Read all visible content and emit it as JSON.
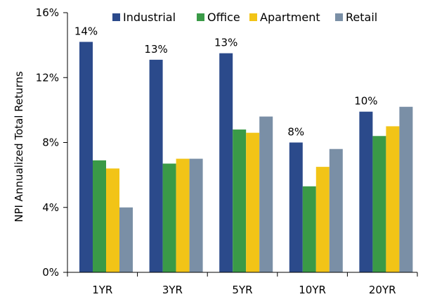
{
  "chart_data": {
    "type": "bar",
    "title": "",
    "xlabel": "",
    "ylabel": "NPI Annualized Total Returns",
    "ylim": [
      0,
      16
    ],
    "yticks": [
      "0%",
      "4%",
      "8%",
      "12%",
      "16%"
    ],
    "ytick_values": [
      0,
      4,
      8,
      12,
      16
    ],
    "grid": false,
    "legend_position": "top",
    "categories": [
      "1YR",
      "3YR",
      "5YR",
      "10YR",
      "20YR"
    ],
    "series": [
      {
        "name": "Industrial",
        "color": "#2B4A8B",
        "values": [
          14.2,
          13.1,
          13.5,
          8.0,
          9.9
        ]
      },
      {
        "name": "Office",
        "color": "#3A9A47",
        "values": [
          6.9,
          6.7,
          8.8,
          5.3,
          8.4
        ]
      },
      {
        "name": "Apartment",
        "color": "#F2C417",
        "values": [
          6.4,
          7.0,
          8.6,
          6.5,
          9.0
        ]
      },
      {
        "name": "Retail",
        "color": "#7A8FA6",
        "values": [
          4.0,
          7.0,
          9.6,
          7.6,
          10.2
        ]
      }
    ],
    "data_labels": [
      {
        "category": "1YR",
        "series": "Industrial",
        "text": "14%"
      },
      {
        "category": "3YR",
        "series": "Industrial",
        "text": "13%"
      },
      {
        "category": "5YR",
        "series": "Industrial",
        "text": "13%"
      },
      {
        "category": "10YR",
        "series": "Industrial",
        "text": "8%"
      },
      {
        "category": "20YR",
        "series": "Industrial",
        "text": "10%"
      }
    ]
  }
}
